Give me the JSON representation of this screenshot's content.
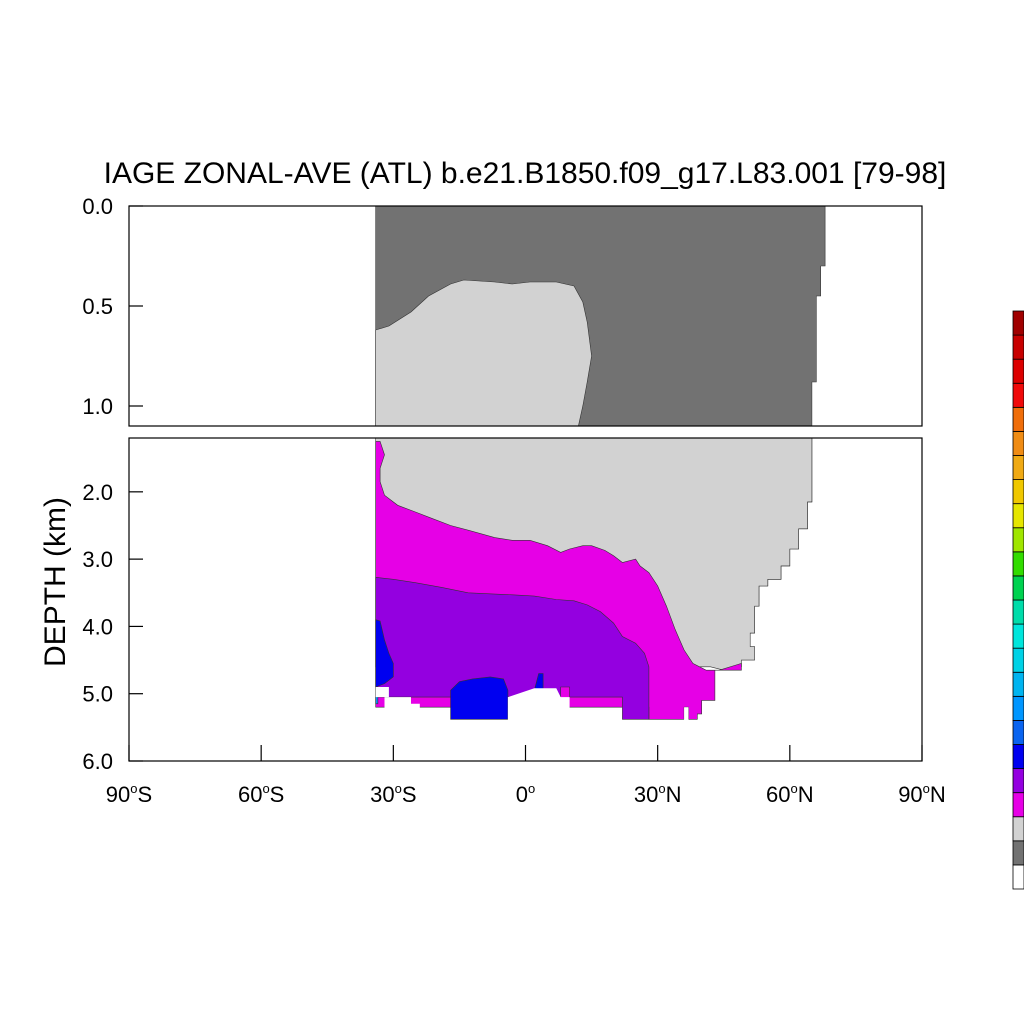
{
  "chart_data": {
    "type": "heatmap",
    "title": "IAGE ZONAL-AVE (ATL) b.e21.B1850.f09_g17.L83.001 [79-98]",
    "xlabel": "",
    "ylabel": "DEPTH (km)",
    "x_ticks": [
      {
        "value": -90,
        "label": "90°S",
        "base": "90",
        "sup": "o",
        "tail": "S"
      },
      {
        "value": -60,
        "label": "60°S",
        "base": "60",
        "sup": "o",
        "tail": "S"
      },
      {
        "value": -30,
        "label": "30°S",
        "base": "30",
        "sup": "o",
        "tail": "S"
      },
      {
        "value": 0,
        "label": "0°",
        "base": "0",
        "sup": "o",
        "tail": ""
      },
      {
        "value": 30,
        "label": "30°N",
        "base": "30",
        "sup": "o",
        "tail": "N"
      },
      {
        "value": 60,
        "label": "60°N",
        "base": "60",
        "sup": "o",
        "tail": "N"
      },
      {
        "value": 90,
        "label": "90°N",
        "base": "90",
        "sup": "o",
        "tail": "N"
      }
    ],
    "xlim": [
      -90,
      90
    ],
    "upper_panel": {
      "ylim": [
        0.0,
        1.1
      ],
      "y_ticks": [
        {
          "value": 0.0,
          "label": "0.0"
        },
        {
          "value": 0.5,
          "label": "0.5"
        },
        {
          "value": 1.0,
          "label": "1.0"
        }
      ]
    },
    "lower_panel": {
      "ylim": [
        1.2,
        6.0
      ],
      "y_ticks": [
        {
          "value": 2.0,
          "label": "2.0"
        },
        {
          "value": 3.0,
          "label": "3.0"
        },
        {
          "value": 4.0,
          "label": "4.0"
        },
        {
          "value": 5.0,
          "label": "5.0"
        },
        {
          "value": 6.0,
          "label": "6.0"
        }
      ]
    },
    "colors": {
      "darkgray": "#727272",
      "lightgray": "#d2d2d2",
      "magenta": "#e600e6",
      "purple": "#9400e0",
      "blue": "#0000f0",
      "lightblue": "#0a8cff"
    },
    "colorbar": [
      "#ffffff",
      "#727272",
      "#d2d2d2",
      "#e600e6",
      "#9400e0",
      "#0000f0",
      "#0a64f0",
      "#0096ff",
      "#00b4f0",
      "#00d2e6",
      "#00e6dc",
      "#00dcaa",
      "#00d250",
      "#32dc00",
      "#a0e600",
      "#e6e600",
      "#f0c800",
      "#f0aa14",
      "#f08c14",
      "#f06e0a",
      "#f00a0a",
      "#dc0000",
      "#c80000",
      "#a00000"
    ],
    "regions": [
      {
        "name": "darkgray-upper",
        "color": "darkgray",
        "panel": "upper",
        "points": [
          [
            -34,
            0
          ],
          [
            68,
            0
          ],
          [
            68,
            0.3
          ],
          [
            67,
            0.3
          ],
          [
            67,
            0.45
          ],
          [
            66,
            0.45
          ],
          [
            66,
            0.88
          ],
          [
            65,
            0.88
          ],
          [
            65,
            1.1
          ],
          [
            -34,
            1.1
          ]
        ]
      },
      {
        "name": "lightgray-upper",
        "color": "lightgray",
        "panel": "upper",
        "points": [
          [
            -34,
            0.62
          ],
          [
            -31,
            0.6
          ],
          [
            -26,
            0.53
          ],
          [
            -22,
            0.45
          ],
          [
            -17,
            0.39
          ],
          [
            -14,
            0.37
          ],
          [
            -7,
            0.38
          ],
          [
            -3,
            0.39
          ],
          [
            1,
            0.38
          ],
          [
            7,
            0.38
          ],
          [
            11,
            0.4
          ],
          [
            13,
            0.48
          ],
          [
            14,
            0.58
          ],
          [
            15,
            0.75
          ],
          [
            14,
            0.88
          ],
          [
            13,
            1.0
          ],
          [
            12,
            1.1
          ],
          [
            -34,
            1.1
          ]
        ]
      },
      {
        "name": "darkgray-lower",
        "color": "darkgray",
        "panel": "lower",
        "points": [
          [
            65,
            1.2
          ],
          [
            65,
            2.15
          ],
          [
            64,
            2.15
          ],
          [
            64,
            2.55
          ],
          [
            62,
            2.55
          ],
          [
            62,
            2.85
          ],
          [
            60,
            2.85
          ],
          [
            60,
            3.1
          ],
          [
            58,
            3.1
          ],
          [
            58,
            3.3
          ],
          [
            55,
            3.3
          ],
          [
            55,
            3.4
          ],
          [
            53,
            3.4
          ],
          [
            53,
            3.7
          ],
          [
            52,
            3.7
          ],
          [
            52,
            4.1
          ],
          [
            51,
            4.1
          ],
          [
            51,
            4.3
          ],
          [
            50,
            4.3
          ],
          [
            50,
            4.38
          ],
          [
            49,
            4.35
          ],
          [
            48,
            4.15
          ],
          [
            47,
            3.9
          ],
          [
            45,
            3.6
          ],
          [
            43,
            3.7
          ],
          [
            42,
            3.3
          ],
          [
            40,
            3.05
          ],
          [
            38,
            2.8
          ],
          [
            37,
            2.55
          ],
          [
            35,
            2.3
          ],
          [
            32,
            2.15
          ],
          [
            29,
            2.0
          ],
          [
            27,
            2.05
          ],
          [
            25,
            2.1
          ],
          [
            23,
            1.95
          ],
          [
            20,
            2.05
          ],
          [
            17,
            2.15
          ],
          [
            15,
            2.2
          ],
          [
            12,
            2.25
          ],
          [
            10,
            2.2
          ],
          [
            5,
            2.2
          ],
          [
            5,
            1.85
          ],
          [
            6,
            1.65
          ],
          [
            8,
            1.45
          ],
          [
            10,
            1.2
          ]
        ]
      },
      {
        "name": "lightgray-lower",
        "color": "lightgray",
        "panel": "lower",
        "points": [
          [
            -34,
            1.2
          ],
          [
            65,
            1.2
          ],
          [
            65,
            2.15
          ],
          [
            64,
            2.15
          ],
          [
            64,
            2.55
          ],
          [
            62,
            2.55
          ],
          [
            62,
            2.85
          ],
          [
            60,
            2.85
          ],
          [
            60,
            3.1
          ],
          [
            58,
            3.1
          ],
          [
            58,
            3.3
          ],
          [
            55,
            3.3
          ],
          [
            55,
            3.4
          ],
          [
            53,
            3.4
          ],
          [
            53,
            3.7
          ],
          [
            52,
            3.7
          ],
          [
            52,
            4.1
          ],
          [
            51,
            4.1
          ],
          [
            51,
            4.3
          ],
          [
            52,
            4.3
          ],
          [
            52,
            4.5
          ],
          [
            49,
            4.5
          ],
          [
            49,
            4.6
          ],
          [
            45,
            4.65
          ],
          [
            42,
            4.6
          ],
          [
            38,
            4.6
          ],
          [
            -34,
            4.6
          ]
        ]
      },
      {
        "name": "magenta-lower",
        "color": "magenta",
        "panel": "lower",
        "points": [
          [
            -34,
            1.25
          ],
          [
            -33,
            1.25
          ],
          [
            -32,
            1.45
          ],
          [
            -33,
            1.65
          ],
          [
            -33,
            1.85
          ],
          [
            -32,
            2.05
          ],
          [
            -29,
            2.2
          ],
          [
            -25,
            2.3
          ],
          [
            -21,
            2.4
          ],
          [
            -17,
            2.5
          ],
          [
            -13,
            2.57
          ],
          [
            -7,
            2.68
          ],
          [
            -3,
            2.72
          ],
          [
            1,
            2.72
          ],
          [
            5,
            2.8
          ],
          [
            8,
            2.9
          ],
          [
            10,
            2.85
          ],
          [
            13,
            2.8
          ],
          [
            15,
            2.8
          ],
          [
            18,
            2.87
          ],
          [
            20,
            2.95
          ],
          [
            22,
            3.05
          ],
          [
            25,
            3.0
          ],
          [
            26,
            3.1
          ],
          [
            28,
            3.2
          ],
          [
            30,
            3.4
          ],
          [
            32,
            3.7
          ],
          [
            34,
            4.05
          ],
          [
            36,
            4.35
          ],
          [
            38,
            4.55
          ],
          [
            41,
            4.65
          ],
          [
            44,
            4.65
          ],
          [
            49,
            4.55
          ],
          [
            49,
            4.65
          ],
          [
            43,
            4.65
          ],
          [
            43,
            5.1
          ],
          [
            40,
            5.1
          ],
          [
            40,
            5.3
          ],
          [
            39,
            5.3
          ],
          [
            39,
            5.38
          ],
          [
            37,
            5.38
          ],
          [
            37,
            5.2
          ],
          [
            36,
            5.2
          ],
          [
            36,
            5.38
          ],
          [
            28,
            5.38
          ],
          [
            28,
            5.2
          ],
          [
            -34,
            5.2
          ]
        ]
      },
      {
        "name": "purple-lower",
        "color": "purple",
        "panel": "lower",
        "points": [
          [
            -34,
            3.27
          ],
          [
            -30,
            3.3
          ],
          [
            -25,
            3.35
          ],
          [
            -19,
            3.42
          ],
          [
            -13,
            3.5
          ],
          [
            -7,
            3.52
          ],
          [
            -3,
            3.53
          ],
          [
            2,
            3.55
          ],
          [
            7,
            3.6
          ],
          [
            11,
            3.62
          ],
          [
            14,
            3.68
          ],
          [
            17,
            3.78
          ],
          [
            20,
            3.95
          ],
          [
            22,
            4.15
          ],
          [
            25,
            4.25
          ],
          [
            27,
            4.4
          ],
          [
            28,
            4.6
          ],
          [
            28,
            4.9
          ],
          [
            28,
            5.38
          ],
          [
            22,
            5.38
          ],
          [
            22,
            5.05
          ],
          [
            10,
            5.05
          ],
          [
            10,
            4.9
          ],
          [
            8,
            4.9
          ],
          [
            8,
            5.05
          ],
          [
            -34,
            5.05
          ]
        ]
      },
      {
        "name": "blue-lower",
        "color": "blue",
        "panel": "lower",
        "points": [
          [
            -34,
            3.9
          ],
          [
            -33,
            3.92
          ],
          [
            -32,
            4.2
          ],
          [
            -31,
            4.4
          ],
          [
            -30,
            4.55
          ],
          [
            -30,
            4.75
          ],
          [
            -32,
            4.85
          ],
          [
            -34,
            4.9
          ]
        ]
      },
      {
        "name": "blue-lower-2",
        "color": "blue",
        "panel": "lower",
        "points": [
          [
            -17,
            5.38
          ],
          [
            -17,
            4.95
          ],
          [
            -15,
            4.82
          ],
          [
            -12,
            4.78
          ],
          [
            -8,
            4.75
          ],
          [
            -5,
            4.78
          ],
          [
            -4,
            4.95
          ],
          [
            -4,
            5.38
          ]
        ]
      },
      {
        "name": "blue-spot",
        "color": "blue",
        "panel": "lower",
        "points": [
          [
            2,
            4.95
          ],
          [
            3,
            4.7
          ],
          [
            4,
            4.7
          ],
          [
            4,
            4.95
          ]
        ]
      },
      {
        "name": "lightblue-edge",
        "color": "lightblue",
        "panel": "lower",
        "points": [
          [
            -34,
            4.9
          ],
          [
            -33.5,
            4.9
          ],
          [
            -33.5,
            5.15
          ],
          [
            -34,
            5.15
          ]
        ]
      }
    ],
    "masks": [
      {
        "name": "bottom-gap-1",
        "panel": "lower",
        "points": [
          [
            -34,
            4.9
          ],
          [
            -31,
            4.9
          ],
          [
            -31,
            5.05
          ],
          [
            -34,
            5.05
          ]
        ]
      },
      {
        "name": "bottom-gap-2",
        "panel": "lower",
        "points": [
          [
            -32,
            5.05
          ],
          [
            -26,
            5.05
          ],
          [
            -26,
            5.15
          ],
          [
            -24,
            5.15
          ],
          [
            -24,
            5.42
          ],
          [
            -30,
            5.42
          ],
          [
            -30,
            5.25
          ],
          [
            -32,
            5.25
          ]
        ]
      },
      {
        "name": "bottom-gap-3",
        "panel": "lower",
        "points": [
          [
            -4,
            5.05
          ],
          [
            2,
            4.92
          ],
          [
            7,
            4.92
          ],
          [
            8,
            5.05
          ],
          [
            10,
            5.05
          ],
          [
            10,
            5.42
          ],
          [
            -4,
            5.42
          ]
        ]
      },
      {
        "name": "bottom-gap-4",
        "panel": "lower",
        "points": [
          [
            36,
            5.2
          ],
          [
            37,
            5.2
          ],
          [
            37,
            5.42
          ],
          [
            36,
            5.42
          ]
        ]
      }
    ]
  }
}
